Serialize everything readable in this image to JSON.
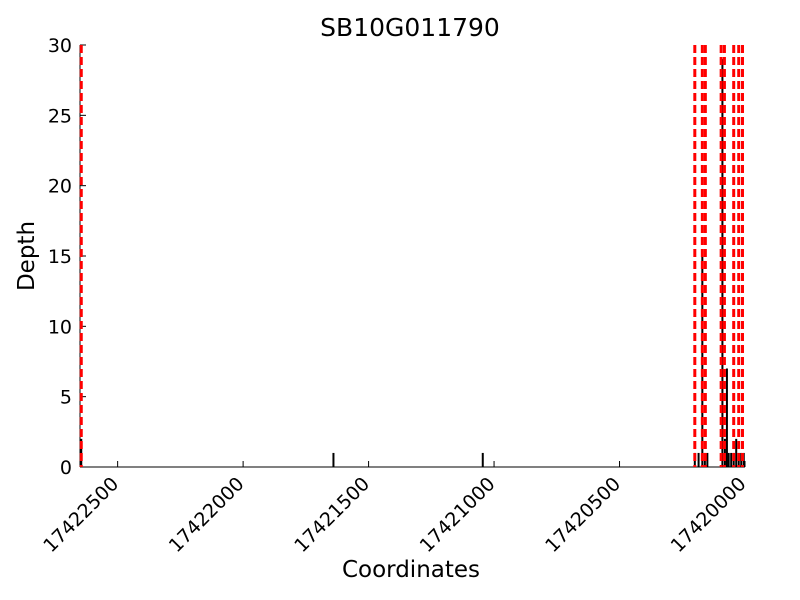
{
  "chart_data": {
    "type": "bar",
    "title": "SB10G011790",
    "xlabel": "Coordinates",
    "ylabel": "Depth",
    "xlim": [
      17422650,
      17420000
    ],
    "ylim": [
      0,
      30
    ],
    "x_inverted": true,
    "grid": false,
    "x_ticks": [
      {
        "value": 17422500,
        "label": "17422500"
      },
      {
        "value": 17422000,
        "label": "17422000"
      },
      {
        "value": 17421500,
        "label": "17421500"
      },
      {
        "value": 17421000,
        "label": "17421000"
      },
      {
        "value": 17420500,
        "label": "17420500"
      },
      {
        "value": 17420000,
        "label": "17420000"
      }
    ],
    "y_ticks": [
      {
        "value": 0,
        "label": "0"
      },
      {
        "value": 5,
        "label": "5"
      },
      {
        "value": 10,
        "label": "10"
      },
      {
        "value": 15,
        "label": "15"
      },
      {
        "value": 20,
        "label": "20"
      },
      {
        "value": 25,
        "label": "25"
      },
      {
        "value": 30,
        "label": "30"
      }
    ],
    "depth_bars": [
      {
        "x": 17422645,
        "depth": 2
      },
      {
        "x": 17421640,
        "depth": 1
      },
      {
        "x": 17421045,
        "depth": 1
      },
      {
        "x": 17420200,
        "depth": 1
      },
      {
        "x": 17420185,
        "depth": 1
      },
      {
        "x": 17420170,
        "depth": 15
      },
      {
        "x": 17420160,
        "depth": 1
      },
      {
        "x": 17420150,
        "depth": 1
      },
      {
        "x": 17420090,
        "depth": 29
      },
      {
        "x": 17420080,
        "depth": 2
      },
      {
        "x": 17420072,
        "depth": 7
      },
      {
        "x": 17420065,
        "depth": 1
      },
      {
        "x": 17420055,
        "depth": 1
      },
      {
        "x": 17420045,
        "depth": 1
      },
      {
        "x": 17420035,
        "depth": 2
      },
      {
        "x": 17420025,
        "depth": 1
      },
      {
        "x": 17420015,
        "depth": 1
      },
      {
        "x": 17420005,
        "depth": 1
      }
    ],
    "boundary_lines": [
      17422645,
      17420200,
      17420170,
      17420158,
      17420095,
      17420082,
      17420045,
      17420025,
      17420010
    ],
    "colors": {
      "bars": "#000000",
      "boundaries": "#ff0000"
    }
  }
}
